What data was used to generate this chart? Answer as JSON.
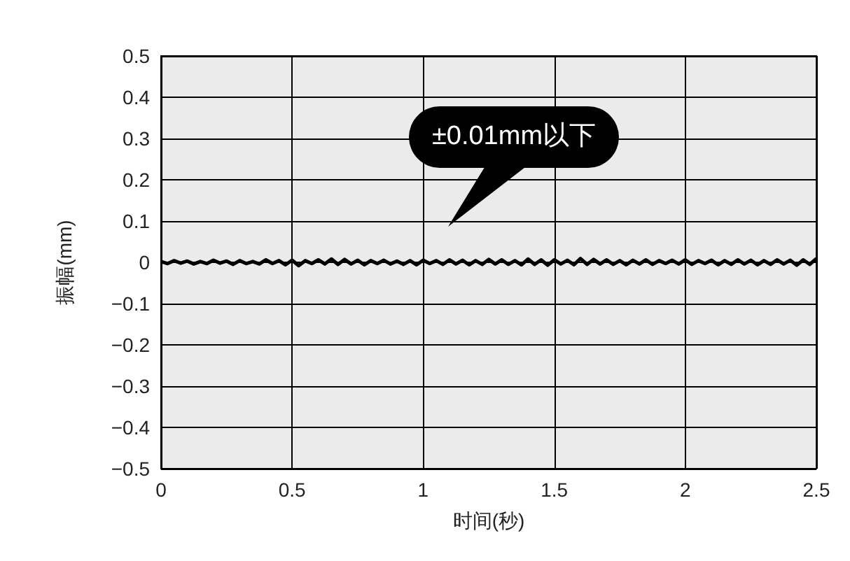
{
  "chart_data": {
    "type": "line",
    "xlabel": "时间(秒)",
    "ylabel": "振幅(mm)",
    "x": [
      0,
      0.025,
      0.05,
      0.075,
      0.1,
      0.125,
      0.15,
      0.175,
      0.2,
      0.225,
      0.25,
      0.275,
      0.3,
      0.325,
      0.35,
      0.375,
      0.4,
      0.425,
      0.45,
      0.475,
      0.5,
      0.525,
      0.55,
      0.575,
      0.6,
      0.625,
      0.65,
      0.675,
      0.7,
      0.725,
      0.75,
      0.775,
      0.8,
      0.825,
      0.85,
      0.875,
      0.9,
      0.925,
      0.95,
      0.975,
      1,
      1.025,
      1.05,
      1.075,
      1.1,
      1.125,
      1.15,
      1.175,
      1.2,
      1.225,
      1.25,
      1.275,
      1.3,
      1.325,
      1.35,
      1.375,
      1.4,
      1.425,
      1.45,
      1.475,
      1.5,
      1.525,
      1.55,
      1.575,
      1.6,
      1.625,
      1.65,
      1.675,
      1.7,
      1.725,
      1.75,
      1.775,
      1.8,
      1.825,
      1.85,
      1.875,
      1.9,
      1.925,
      1.95,
      1.975,
      2,
      2.025,
      2.05,
      2.075,
      2.1,
      2.125,
      2.15,
      2.175,
      2.2,
      2.225,
      2.25,
      2.275,
      2.3,
      2.325,
      2.35,
      2.375,
      2.4,
      2.425,
      2.45,
      2.475,
      2.5
    ],
    "series": [
      {
        "color": "#000000",
        "values": [
          0.002,
          -0.003,
          0.004,
          -0.002,
          0.003,
          -0.004,
          0.002,
          -0.003,
          0.005,
          -0.002,
          0.003,
          -0.005,
          0.004,
          -0.003,
          0.002,
          -0.004,
          0.006,
          -0.003,
          0.004,
          -0.006,
          0.005,
          -0.008,
          0.004,
          -0.003,
          0.006,
          -0.004,
          0.008,
          -0.005,
          0.007,
          -0.004,
          0.005,
          -0.006,
          0.004,
          -0.003,
          0.005,
          -0.004,
          0.003,
          -0.005,
          0.004,
          -0.006,
          0.005,
          -0.003,
          0.004,
          -0.005,
          0.006,
          -0.004,
          0.005,
          -0.006,
          0.004,
          -0.005,
          0.007,
          -0.004,
          0.006,
          -0.005,
          0.004,
          -0.006,
          0.008,
          -0.005,
          0.006,
          -0.007,
          0.006,
          -0.004,
          0.005,
          -0.006,
          0.009,
          -0.005,
          0.007,
          -0.004,
          0.006,
          -0.005,
          0.004,
          -0.006,
          0.005,
          -0.004,
          0.006,
          -0.005,
          0.004,
          -0.003,
          0.005,
          -0.004,
          0.006,
          -0.005,
          0.004,
          -0.003,
          0.005,
          -0.006,
          0.004,
          -0.005,
          0.006,
          -0.004,
          0.005,
          -0.006,
          0.004,
          -0.005,
          0.006,
          -0.004,
          0.005,
          -0.007,
          0.006,
          -0.005,
          0.009
        ]
      }
    ],
    "xlim": [
      0,
      2.5
    ],
    "xticks": [
      0,
      0.5,
      1,
      1.5,
      2,
      2.5
    ],
    "ylim": [
      -0.5,
      0.5
    ],
    "yticks": [
      {
        "value": -0.5,
        "label": "−0.5"
      },
      {
        "value": -0.4,
        "label": "−0.4"
      },
      {
        "value": -0.3,
        "label": "−0.3"
      },
      {
        "value": -0.2,
        "label": "−0.2"
      },
      {
        "value": -0.1,
        "label": "−0.1"
      },
      0,
      0.1,
      0.2,
      0.3,
      0.4,
      0.5
    ],
    "grid": true,
    "marker": "none",
    "line_style": "solid",
    "annotations": [
      "±0.01mm以下"
    ]
  }
}
